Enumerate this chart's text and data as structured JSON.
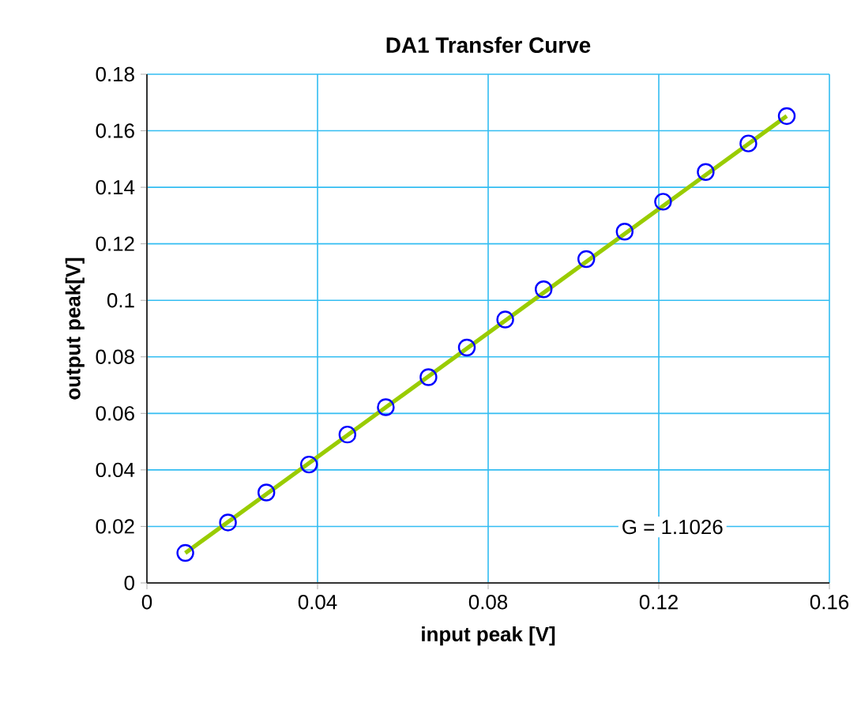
{
  "chart_data": {
    "type": "scatter",
    "title": "DA1 Transfer Curve",
    "xlabel": "input peak [V]",
    "ylabel": "output peak[V]",
    "annotations": [
      "G = 1.1026"
    ],
    "x": [
      0.009,
      0.019,
      0.028,
      0.038,
      0.047,
      0.056,
      0.066,
      0.075,
      0.084,
      0.093,
      0.103,
      0.112,
      0.121,
      0.131,
      0.141,
      0.15
    ],
    "series": [
      {
        "color": "#0000ff",
        "marker": "circle",
        "values": [
          0.0106,
          0.0214,
          0.032,
          0.0419,
          0.0525,
          0.0622,
          0.0728,
          0.0833,
          0.0932,
          0.1039,
          0.1146,
          0.1243,
          0.1349,
          0.1454,
          0.1555,
          0.1652
        ]
      },
      {
        "type": "line",
        "color": "#99cc00",
        "marker": "none",
        "x": [
          0.009,
          0.15
        ],
        "values": [
          0.0106,
          0.1652
        ]
      }
    ],
    "xlim": [
      0,
      0.16
    ],
    "ylim": [
      0,
      0.18
    ],
    "xticks": [
      0,
      0.04,
      0.08,
      0.12,
      0.16
    ],
    "yticks": [
      0,
      0.02,
      0.04,
      0.06,
      0.08,
      0.1,
      0.12,
      0.14,
      0.16,
      0.18
    ],
    "grid": true
  }
}
